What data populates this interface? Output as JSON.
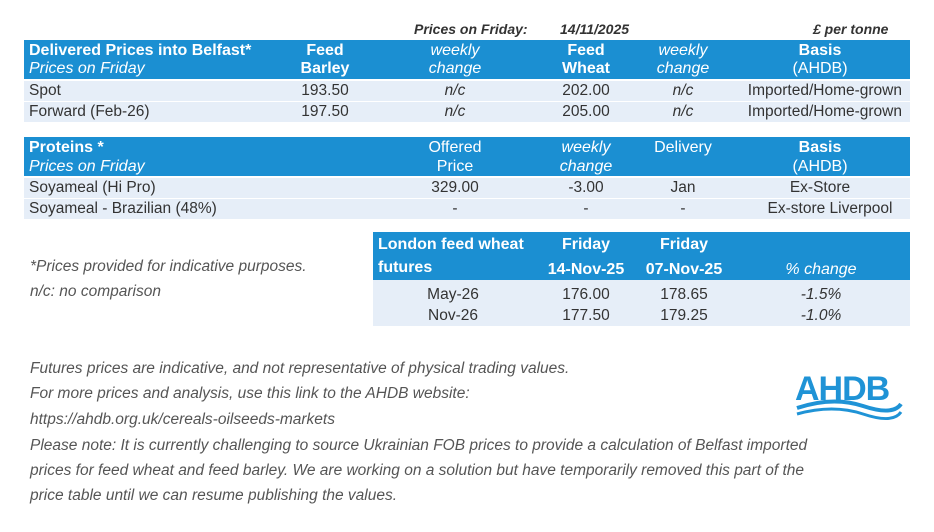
{
  "header": {
    "prices_label": "Prices on Friday:",
    "date": "14/11/2025",
    "unit": "£ per tonne"
  },
  "delivered": {
    "title": "Delivered Prices into Belfast*",
    "subtitle": "Prices on Friday",
    "col_barley_1": "Feed",
    "col_barley_2": "Barley",
    "col_wchange_1": "weekly",
    "col_wchange_2": "change",
    "col_wheat_1": "Feed",
    "col_wheat_2": "Wheat",
    "col_wchange2_1": "weekly",
    "col_wchange2_2": "change",
    "col_basis_1": "Basis",
    "col_basis_2": "(AHDB)",
    "rows": [
      {
        "name": "Spot",
        "barley": "193.50",
        "barley_change": "n/c",
        "wheat": "202.00",
        "wheat_change": "n/c",
        "basis": "Imported/Home-grown"
      },
      {
        "name": "Forward (Feb-26)",
        "barley": "197.50",
        "barley_change": "n/c",
        "wheat": "205.00",
        "wheat_change": "n/c",
        "basis": "Imported/Home-grown"
      }
    ]
  },
  "proteins": {
    "title": "Proteins *",
    "subtitle": "Prices on Friday",
    "col_offered_1": "Offered",
    "col_offered_2": "Price",
    "col_change_1": "weekly",
    "col_change_2": "change",
    "col_delivery": "Delivery",
    "col_basis_1": "Basis",
    "col_basis_2": "(AHDB)",
    "rows": [
      {
        "name": "Soyameal (Hi Pro)",
        "price": "329.00",
        "change": "-3.00",
        "delivery": "Jan",
        "basis": "Ex-Store"
      },
      {
        "name": "Soyameal - Brazilian (48%)",
        "price": "-",
        "change": "-",
        "delivery": "-",
        "basis": "Ex-store Liverpool"
      }
    ]
  },
  "notes_left": {
    "line1": "*Prices provided for indicative purposes.",
    "line2": "n/c: no comparison"
  },
  "futures": {
    "title_1": "London feed wheat",
    "title_2": "futures",
    "col1_1": "Friday",
    "col1_2": "14-Nov-25",
    "col2_1": "Friday",
    "col2_2": "07-Nov-25",
    "col3": "% change",
    "rows": [
      {
        "month": "May-26",
        "v1": "176.00",
        "v2": "178.65",
        "change": "-1.5%"
      },
      {
        "month": "Nov-26",
        "v1": "177.50",
        "v2": "179.25",
        "change": "-1.0%"
      }
    ]
  },
  "footer": {
    "line1": "Futures prices are indicative, and not representative of physical trading values.",
    "line2": "For more prices and analysis, use this link to the AHDB website:",
    "line3": "https://ahdb.org.uk/cereals-oilseeds-markets",
    "line4": "Please note: It is currently challenging to source Ukrainian FOB prices to provide a calculation of Belfast imported",
    "line5": "prices for feed wheat and feed barley. We are working on a solution but have temporarily removed this part of the",
    "line6": "price table until we can resume publishing the values."
  },
  "logo": {
    "text": "AHDB",
    "color": "#1f93d6"
  },
  "colors": {
    "band": "#1b8fd2",
    "row": "#e6eef8"
  }
}
